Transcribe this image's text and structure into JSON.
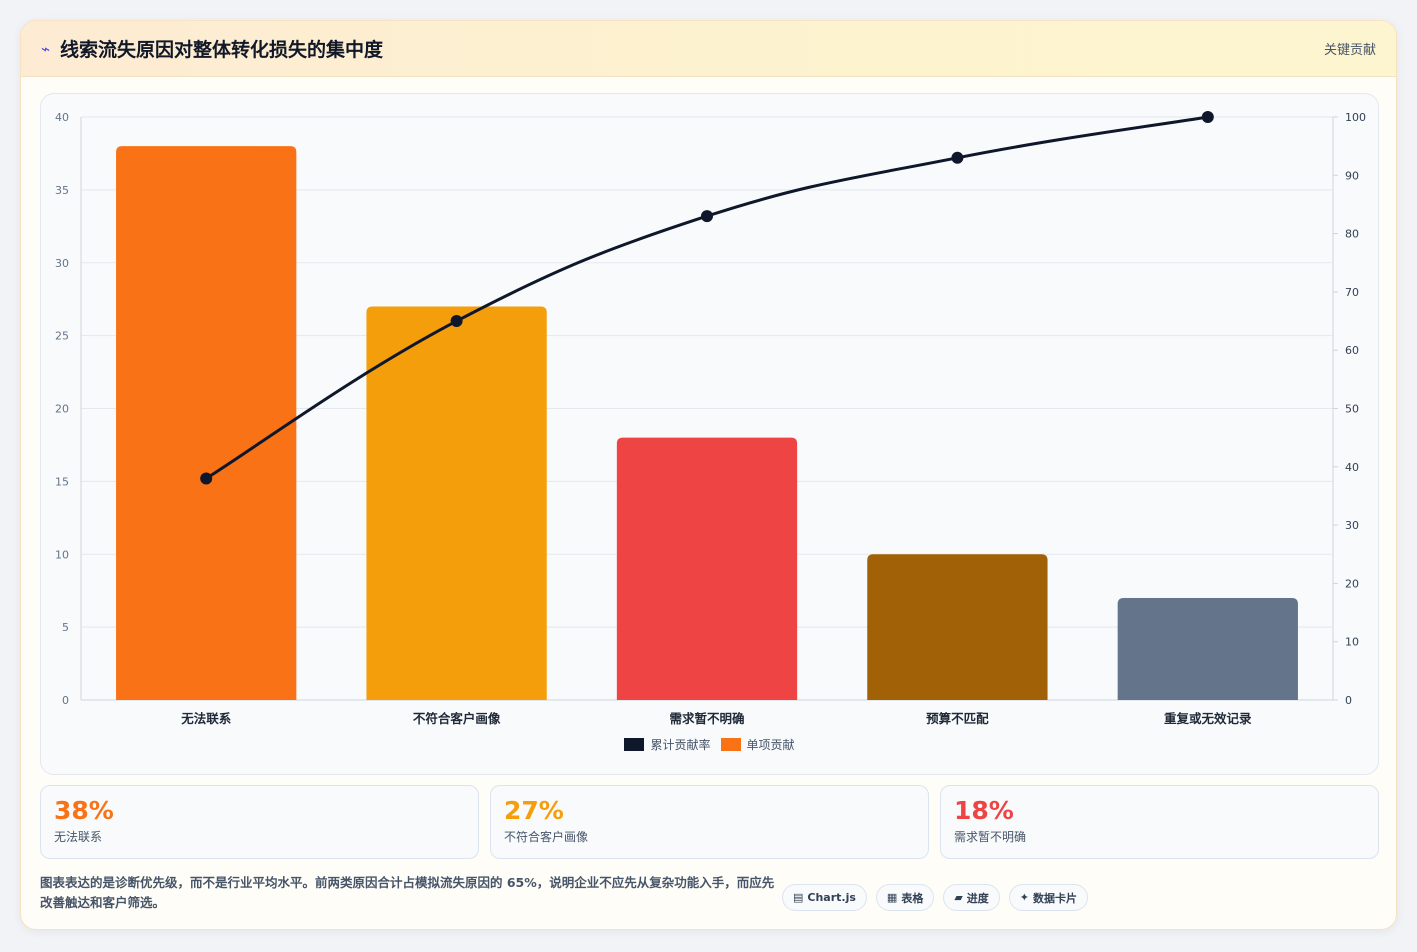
{
  "header": {
    "title": "线索流失原因对整体转化损失的集中度",
    "tag": "关键贡献"
  },
  "colors": {
    "line": "#0f172a",
    "legend_bar": "#f97316"
  },
  "chart_data": {
    "type": "bar",
    "categories": [
      "无法联系",
      "不符合客户画像",
      "需求暂不明确",
      "预算不匹配",
      "重复或无效记录"
    ],
    "series": [
      {
        "name": "单项贡献",
        "type": "bar",
        "axis": "left",
        "values": [
          38,
          27,
          18,
          10,
          7
        ],
        "colors": [
          "#f97316",
          "#f59e0b",
          "#ef4444",
          "#a16207",
          "#64748b"
        ]
      },
      {
        "name": "累计贡献率",
        "type": "line",
        "axis": "right",
        "values": [
          38,
          65,
          83,
          93,
          100
        ],
        "color": "#0f172a"
      }
    ],
    "y_left": {
      "min": 0,
      "max": 40,
      "ticks": [
        "0",
        "5",
        "10",
        "15",
        "20",
        "25",
        "30",
        "35",
        "40"
      ]
    },
    "y_right": {
      "min": 0,
      "max": 100,
      "ticks": [
        "0",
        "10",
        "20",
        "30",
        "40",
        "50",
        "60",
        "70",
        "80",
        "90",
        "100"
      ]
    },
    "legend": [
      "累计贡献率",
      "单项贡献"
    ],
    "legend_position": "bottom",
    "grid": true
  },
  "stats": [
    {
      "value": "38%",
      "label": "无法联系",
      "color": "#f97316"
    },
    {
      "value": "27%",
      "label": "不符合客户画像",
      "color": "#f59e0b"
    },
    {
      "value": "18%",
      "label": "需求暂不明确",
      "color": "#ef4444"
    }
  ],
  "note": "图表表达的是诊断优先级，而不是行业平均水平。前两类原因合计占模拟流失原因的 65%，说明企业不应先从复杂功能入手，而应先改善触达和客户筛选。",
  "badges": [
    {
      "icon": "▤",
      "label": "Chart.js"
    },
    {
      "icon": "▦",
      "label": "表格"
    },
    {
      "icon": "▰",
      "label": "进度"
    },
    {
      "icon": "✦",
      "label": "数据卡片"
    }
  ]
}
